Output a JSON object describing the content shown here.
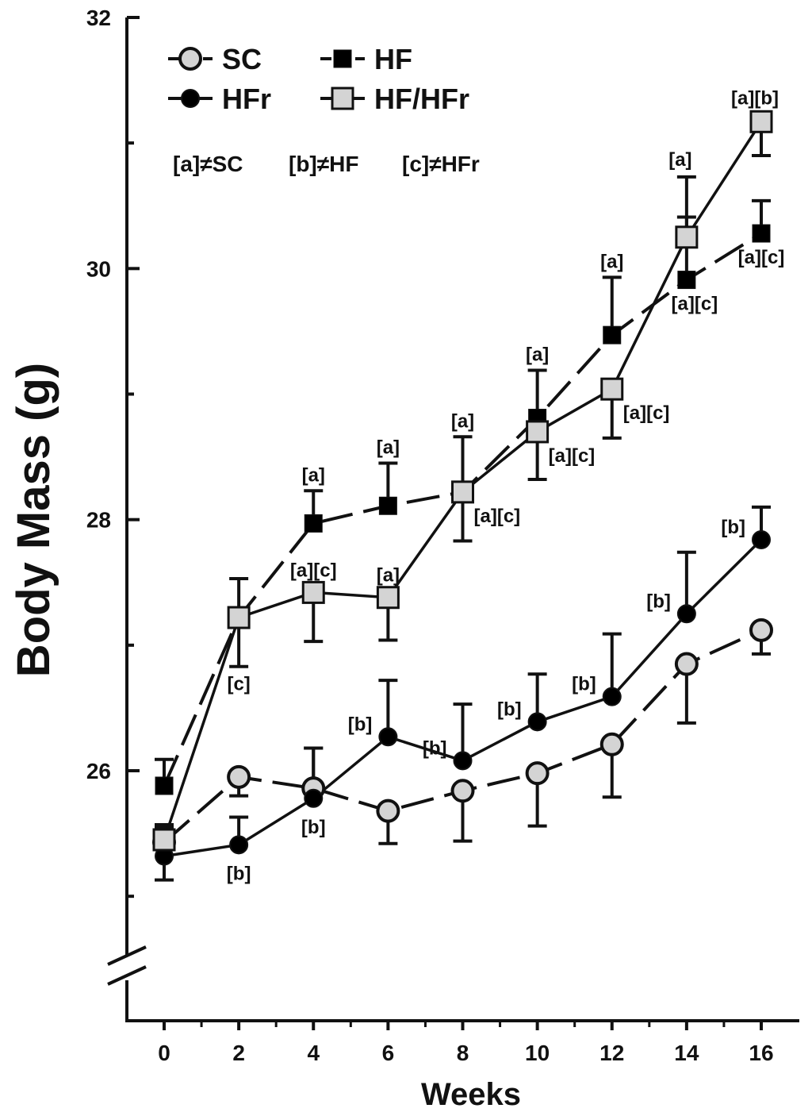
{
  "chart_data": {
    "type": "line",
    "title": "",
    "xlabel": "Weeks",
    "ylabel": "Body Mass (g)",
    "x": [
      0,
      2,
      4,
      6,
      8,
      10,
      12,
      14,
      16
    ],
    "x_ticks": [
      "0",
      "2",
      "4",
      "6",
      "8",
      "10",
      "12",
      "14",
      "16"
    ],
    "xlim": [
      -1,
      17
    ],
    "ylim": [
      24.5,
      32
    ],
    "y_ticks": [
      "26",
      "28",
      "30",
      "32"
    ],
    "y_axis_break": true,
    "grid": false,
    "legend_position": "top-left",
    "series": [
      {
        "name": "SC",
        "marker": "circle",
        "fill": "#d4d4d4",
        "line_style": "dashed",
        "values": [
          25.43,
          25.95,
          25.86,
          25.68,
          25.84,
          25.98,
          26.21,
          26.85,
          27.12
        ],
        "error": [
          0.12,
          0.15,
          0.32,
          0.26,
          0.4,
          0.42,
          0.42,
          0.47,
          0.19
        ],
        "error_direction": [
          "up",
          "down",
          "up",
          "down",
          "down",
          "down",
          "down",
          "down",
          "down"
        ],
        "annotations": [
          "",
          "",
          "",
          "",
          "",
          "",
          "",
          "",
          ""
        ]
      },
      {
        "name": "HF",
        "marker": "square",
        "fill": "#000000",
        "line_style": "dashed",
        "values": [
          25.88,
          27.22,
          27.97,
          28.11,
          28.22,
          28.81,
          29.47,
          29.91,
          30.28
        ],
        "error": [
          0.21,
          0.31,
          0.26,
          0.34,
          0.44,
          0.38,
          0.46,
          0.5,
          0.26
        ],
        "error_direction": [
          "up",
          "up",
          "up",
          "up",
          "up",
          "up",
          "up",
          "up",
          "up"
        ],
        "annotations": [
          "",
          "",
          "[a]",
          "[a]",
          "[a]",
          "[a]",
          "[a]",
          "[a][c]",
          "[a][c]"
        ]
      },
      {
        "name": "HFr",
        "marker": "circle",
        "fill": "#000000",
        "line_style": "solid",
        "values": [
          25.32,
          25.41,
          25.78,
          26.27,
          26.08,
          26.39,
          26.59,
          27.25,
          27.84
        ],
        "error": [
          0.19,
          0.22,
          0.4,
          0.45,
          0.45,
          0.38,
          0.5,
          0.49,
          0.26
        ],
        "error_direction": [
          "down",
          "up",
          "up",
          "up",
          "up",
          "up",
          "up",
          "up",
          "up"
        ],
        "annotations": [
          "",
          "[b]",
          "[b]",
          "[b]",
          "[b]",
          "[b]",
          "[b]",
          "[b]",
          "[b]"
        ]
      },
      {
        "name": "HF/HFr",
        "marker": "square",
        "fill": "#d4d4d4",
        "line_style": "solid",
        "values": [
          25.45,
          27.22,
          27.42,
          27.38,
          28.22,
          28.7,
          29.04,
          30.25,
          31.17
        ],
        "error": [
          0.12,
          0.39,
          0.39,
          0.34,
          0.39,
          0.38,
          0.39,
          0.48,
          0.27
        ],
        "error_direction": [
          "up",
          "down",
          "down",
          "down",
          "down",
          "down",
          "down",
          "up",
          "down"
        ],
        "annotations": [
          "",
          "[c]",
          "[a][c]",
          "[a]",
          "[a][c]",
          "[a][c]",
          "[a][c]",
          "[a]",
          "[a][b]"
        ]
      }
    ],
    "significance_key": [
      "[a]≠SC",
      "[b]≠HF",
      "[c]≠HFr"
    ]
  }
}
